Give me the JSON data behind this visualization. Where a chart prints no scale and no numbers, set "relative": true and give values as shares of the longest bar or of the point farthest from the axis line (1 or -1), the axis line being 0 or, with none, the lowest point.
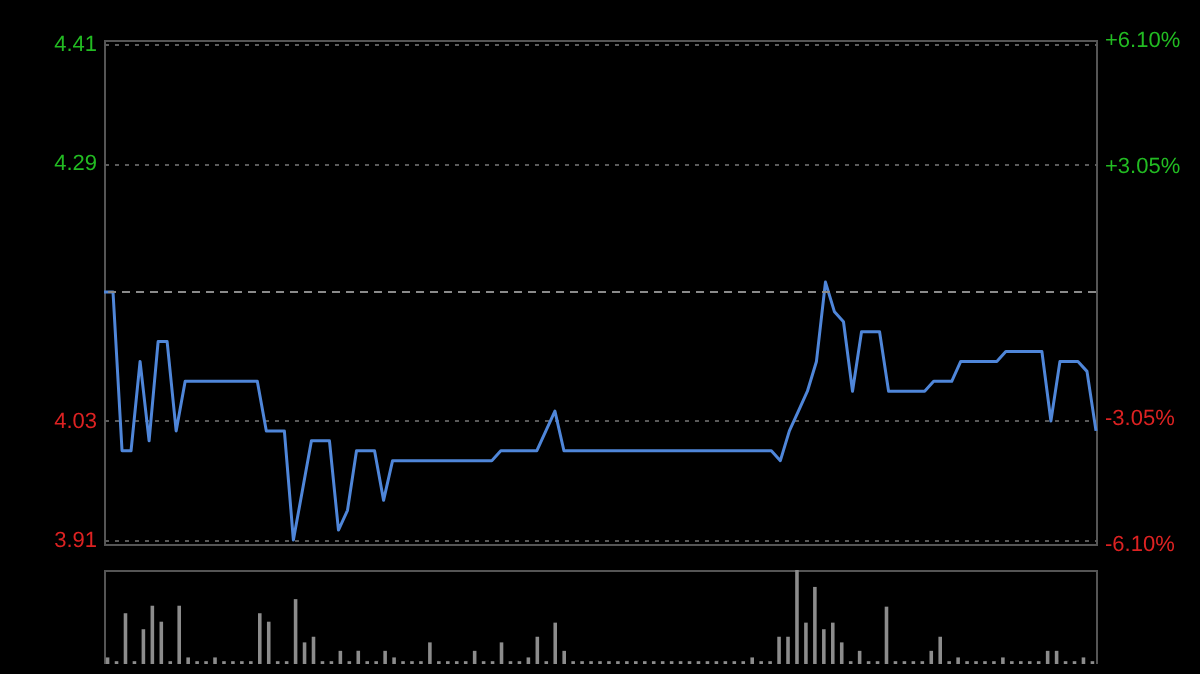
{
  "chart_data": [
    {
      "type": "line",
      "categories": [
        null,
        null,
        null,
        null,
        null,
        null,
        null,
        null,
        null,
        null,
        null,
        null,
        null,
        null,
        null,
        null,
        null,
        null,
        null,
        null,
        null,
        null,
        null,
        null,
        null,
        null,
        null,
        null,
        null,
        null,
        null,
        null,
        null,
        null,
        null,
        null,
        null,
        null,
        null,
        null,
        null,
        null,
        null,
        null,
        null,
        null,
        null,
        null,
        null,
        null,
        null,
        null,
        null,
        null,
        null,
        null,
        null,
        null,
        null,
        null,
        null,
        null,
        null,
        null,
        null,
        null,
        null,
        null,
        null,
        null,
        null,
        null,
        null,
        null,
        null,
        null,
        null,
        null,
        null,
        null,
        null,
        null,
        null,
        null,
        null,
        null,
        null,
        null,
        null,
        null,
        null,
        null,
        null,
        null,
        null,
        null,
        null,
        null,
        null,
        null,
        null,
        null,
        null,
        null,
        null,
        null,
        null,
        null,
        null,
        null,
        null
      ],
      "series": [
        {
          "color": "#4f86d9",
          "values": [
            4.16,
            4.16,
            4.0,
            4.0,
            4.09,
            4.01,
            4.11,
            4.11,
            4.02,
            4.07,
            4.07,
            4.07,
            4.07,
            4.07,
            4.07,
            4.07,
            4.07,
            4.07,
            4.02,
            4.02,
            4.02,
            3.91,
            3.96,
            4.01,
            4.01,
            4.01,
            3.92,
            3.94,
            4.0,
            4.0,
            4.0,
            3.95,
            3.99,
            3.99,
            3.99,
            3.99,
            3.99,
            3.99,
            3.99,
            3.99,
            3.99,
            3.99,
            3.99,
            3.99,
            4.0,
            4.0,
            4.0,
            4.0,
            4.0,
            4.02,
            4.04,
            4.0,
            4.0,
            4.0,
            4.0,
            4.0,
            4.0,
            4.0,
            4.0,
            4.0,
            4.0,
            4.0,
            4.0,
            4.0,
            4.0,
            4.0,
            4.0,
            4.0,
            4.0,
            4.0,
            4.0,
            4.0,
            4.0,
            4.0,
            4.0,
            3.99,
            4.02,
            4.04,
            4.06,
            4.09,
            4.17,
            4.14,
            4.13,
            4.06,
            4.12,
            4.12,
            4.12,
            4.06,
            4.06,
            4.06,
            4.06,
            4.06,
            4.07,
            4.07,
            4.07,
            4.09,
            4.09,
            4.09,
            4.09,
            4.09,
            4.1,
            4.1,
            4.1,
            4.1,
            4.1,
            4.03,
            4.09,
            4.09,
            4.09,
            4.08,
            4.02
          ]
        }
      ],
      "ylim": [
        3.906,
        4.414
      ],
      "yticks": [
        4.41,
        4.29,
        4.03,
        3.91
      ],
      "y2lim": [
        -6.1,
        6.1
      ],
      "y2ticks": [
        {
          "value": 6.1,
          "label": "+6.10%"
        },
        {
          "value": 3.05,
          "label": "+3.05%"
        },
        {
          "value": -3.05,
          "label": "-3.05%"
        },
        {
          "value": -6.1,
          "label": "-6.10%"
        }
      ],
      "ref_lines": [
        {
          "axis": "y",
          "value": 4.16
        }
      ],
      "grid": "y",
      "tick_labels": "y"
    },
    {
      "type": "bar",
      "categories": [
        null,
        null,
        null,
        null,
        null,
        null,
        null,
        null,
        null,
        null,
        null,
        null,
        null,
        null,
        null,
        null,
        null,
        null,
        null,
        null,
        null,
        null,
        null,
        null,
        null,
        null,
        null,
        null,
        null,
        null,
        null,
        null,
        null,
        null,
        null,
        null,
        null,
        null,
        null,
        null,
        null,
        null,
        null,
        null,
        null,
        null,
        null,
        null,
        null,
        null,
        null,
        null,
        null,
        null,
        null,
        null,
        null,
        null,
        null,
        null,
        null,
        null,
        null,
        null,
        null,
        null,
        null,
        null,
        null,
        null,
        null,
        null,
        null,
        null,
        null,
        null,
        null,
        null,
        null,
        null,
        null,
        null,
        null,
        null,
        null,
        null,
        null,
        null,
        null,
        null,
        null,
        null,
        null,
        null,
        null,
        null,
        null,
        null,
        null,
        null,
        null,
        null,
        null,
        null,
        null,
        null,
        null,
        null,
        null,
        null,
        null
      ],
      "values": [
        0.07,
        0.03,
        0.54,
        0.03,
        0.37,
        0.62,
        0.45,
        0.03,
        0.62,
        0.07,
        0.03,
        0.03,
        0.07,
        0.03,
        0.03,
        0.03,
        0.03,
        0.54,
        0.45,
        0.03,
        0.03,
        0.69,
        0.23,
        0.29,
        0.03,
        0.03,
        0.14,
        0.03,
        0.14,
        0.03,
        0.03,
        0.14,
        0.07,
        0.03,
        0.03,
        0.03,
        0.23,
        0.03,
        0.03,
        0.03,
        0.03,
        0.14,
        0.03,
        0.03,
        0.23,
        0.03,
        0.03,
        0.07,
        0.29,
        0.03,
        0.44,
        0.14,
        0.03,
        0.03,
        0.03,
        0.03,
        0.03,
        0.03,
        0.03,
        0.03,
        0.03,
        0.03,
        0.03,
        0.03,
        0.03,
        0.03,
        0.03,
        0.03,
        0.03,
        0.03,
        0.03,
        0.03,
        0.07,
        0.03,
        0.03,
        0.29,
        0.29,
        1,
        0.44,
        0.82,
        0.37,
        0.44,
        0.23,
        0.03,
        0.14,
        0.03,
        0.03,
        0.61,
        0.03,
        0.03,
        0.03,
        0.03,
        0.14,
        0.29,
        0.03,
        0.07,
        0.03,
        0.03,
        0.03,
        0.03,
        0.07,
        0.03,
        0.03,
        0.03,
        0.03,
        0.14,
        0.14,
        0.03,
        0.03,
        0.07,
        0.03
      ],
      "color": "#8c8c8c",
      "relative": true,
      "tick_labels": false
    }
  ]
}
